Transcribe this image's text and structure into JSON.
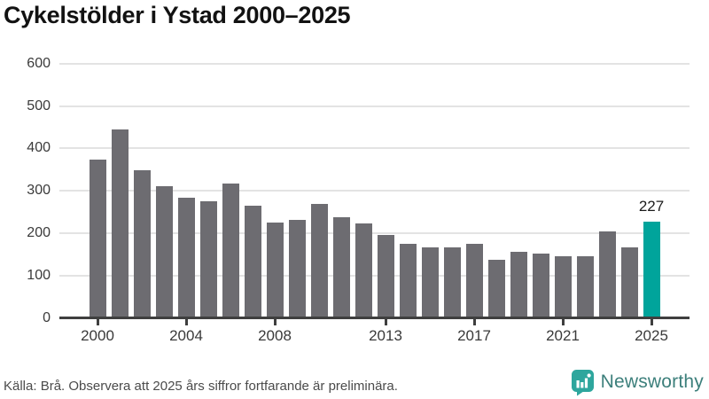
{
  "title": "Cykelstölder i Ystad 2000–2025",
  "footer": {
    "source_note": "Källa: Brå. Observera att 2025 års siffror fortfarande är preliminära."
  },
  "branding": {
    "logo_text": "Newsworthy",
    "icon_color": "#2ea69d",
    "icon_glyph_color": "#ffffff",
    "text_color": "#3c7f7b"
  },
  "chart_data": {
    "type": "bar",
    "title": "Cykelstölder i Ystad 2000–2025",
    "xlabel": "",
    "ylabel": "",
    "categories": [
      2000,
      2001,
      2002,
      2003,
      2004,
      2005,
      2006,
      2007,
      2008,
      2009,
      2010,
      2011,
      2012,
      2013,
      2014,
      2015,
      2016,
      2017,
      2018,
      2019,
      2020,
      2021,
      2022,
      2023,
      2024,
      2025
    ],
    "values": [
      375,
      446,
      350,
      311,
      284,
      277,
      318,
      265,
      226,
      233,
      270,
      238,
      224,
      196,
      176,
      167,
      167,
      175,
      139,
      156,
      153,
      146,
      146,
      205,
      167,
      227
    ],
    "y_ticks": [
      0,
      100,
      200,
      300,
      400,
      500,
      600
    ],
    "ylim": [
      0,
      600
    ],
    "x_tick_labels": [
      "2000",
      "2004",
      "2008",
      "2013",
      "2017",
      "2021",
      "2025"
    ],
    "grid": "horizontal",
    "legend": "none",
    "bar_color": "#6d6c71",
    "highlight_year": 2025,
    "highlight_color": "#00a49b",
    "annotation": {
      "year": 2025,
      "label": "227"
    }
  }
}
